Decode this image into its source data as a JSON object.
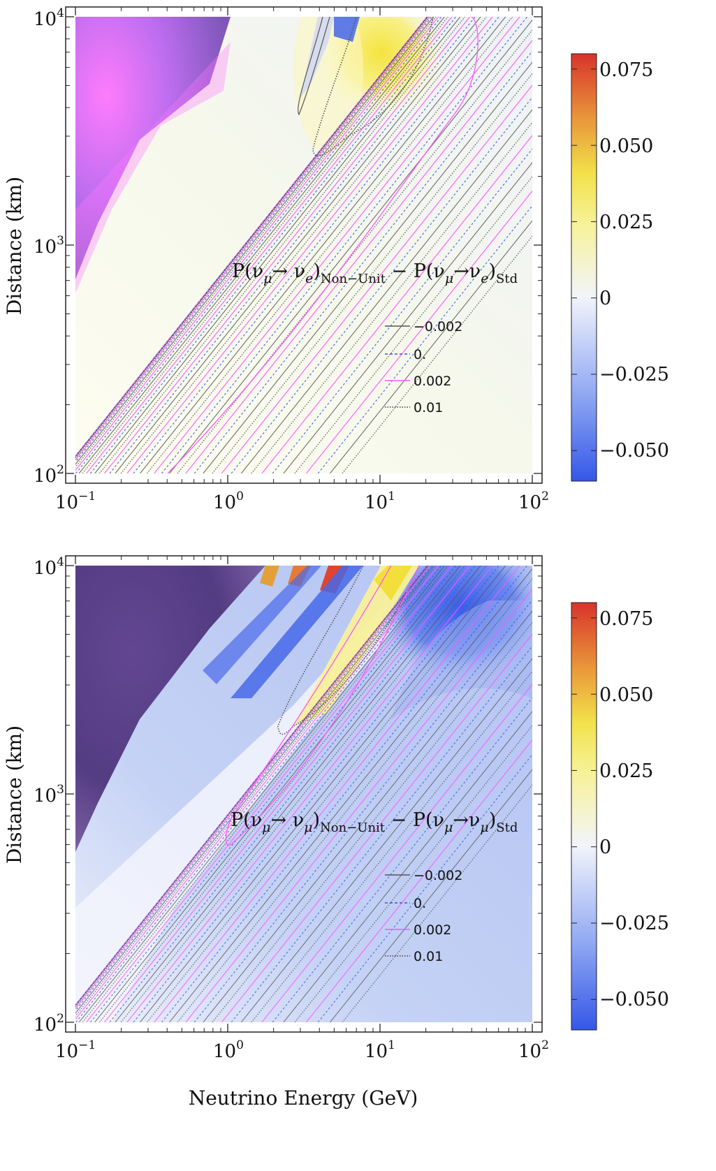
{
  "chart_data": [
    {
      "type": "contour",
      "title": "P(ν_μ→ν_e)_Non-Unit − P(ν_μ→ν_e)_Std",
      "formula": {
        "prefix": "P(ν",
        "nu1": "μ",
        "arrow": "→ ν",
        "nu2": "e",
        "paren": ")",
        "sub1": "Non−Unit",
        "mid": " − P(ν",
        "nu3": "μ",
        "arrow2": "→ν",
        "nu4": "e",
        "paren2": ")",
        "sub2": "Std"
      },
      "xlabel": "",
      "ylabel": "Distance (km)",
      "xscale": "log",
      "yscale": "log",
      "xlim": [
        0.1,
        100
      ],
      "ylim": [
        100,
        10000
      ],
      "xticks": [
        {
          "base": "10",
          "exp": "−1"
        },
        {
          "base": "10",
          "exp": "0"
        },
        {
          "base": "10",
          "exp": "1"
        },
        {
          "base": "10",
          "exp": "2"
        }
      ],
      "yticks": [
        {
          "base": "10",
          "exp": "2"
        },
        {
          "base": "10",
          "exp": "3"
        },
        {
          "base": "10",
          "exp": "4"
        }
      ],
      "colorbar": {
        "range": [
          -0.06,
          0.08
        ],
        "ticks": [
          "0.075",
          "0.050",
          "0.025",
          "0",
          "−0.025",
          "−0.050"
        ],
        "tick_values": [
          0.075,
          0.05,
          0.025,
          0,
          -0.025,
          -0.05
        ]
      },
      "legend": [
        {
          "label": "−0.002",
          "style": "solid",
          "color": "#555555"
        },
        {
          "label": "0.",
          "style": "dashed",
          "color": "#3355dd"
        },
        {
          "label": "0.002",
          "style": "solid",
          "color": "#ff55ff"
        },
        {
          "label": "0.01",
          "style": "dotted",
          "color": "#555555"
        }
      ]
    },
    {
      "type": "contour",
      "title": "P(ν_μ→ν_μ)_Non-Unit − P(ν_μ→ν_μ)_Std",
      "formula": {
        "prefix": "P(ν",
        "nu1": "μ",
        "arrow": "→ ν",
        "nu2": "μ",
        "paren": ")",
        "sub1": "Non−Unit",
        "mid": " − P(ν",
        "nu3": "μ",
        "arrow2": "→ν",
        "nu4": "μ",
        "paren2": ")",
        "sub2": "Std"
      },
      "xlabel": "Neutrino Energy (GeV)",
      "ylabel": "Distance (km)",
      "xscale": "log",
      "yscale": "log",
      "xlim": [
        0.1,
        100
      ],
      "ylim": [
        100,
        10000
      ],
      "xticks": [
        {
          "base": "10",
          "exp": "−1"
        },
        {
          "base": "10",
          "exp": "0"
        },
        {
          "base": "10",
          "exp": "1"
        },
        {
          "base": "10",
          "exp": "2"
        }
      ],
      "yticks": [
        {
          "base": "10",
          "exp": "2"
        },
        {
          "base": "10",
          "exp": "3"
        },
        {
          "base": "10",
          "exp": "4"
        }
      ],
      "colorbar": {
        "range": [
          -0.06,
          0.08
        ],
        "ticks": [
          "0.075",
          "0.050",
          "0.025",
          "0",
          "−0.025",
          "−0.050"
        ],
        "tick_values": [
          0.075,
          0.05,
          0.025,
          0,
          -0.025,
          -0.05
        ]
      },
      "legend": [
        {
          "label": "−0.002",
          "style": "solid",
          "color": "#555555"
        },
        {
          "label": "0.",
          "style": "dashed",
          "color": "#3355dd"
        },
        {
          "label": "0.002",
          "style": "solid",
          "color": "#ff55ff"
        },
        {
          "label": "0.01",
          "style": "dotted",
          "color": "#555555"
        }
      ]
    }
  ]
}
